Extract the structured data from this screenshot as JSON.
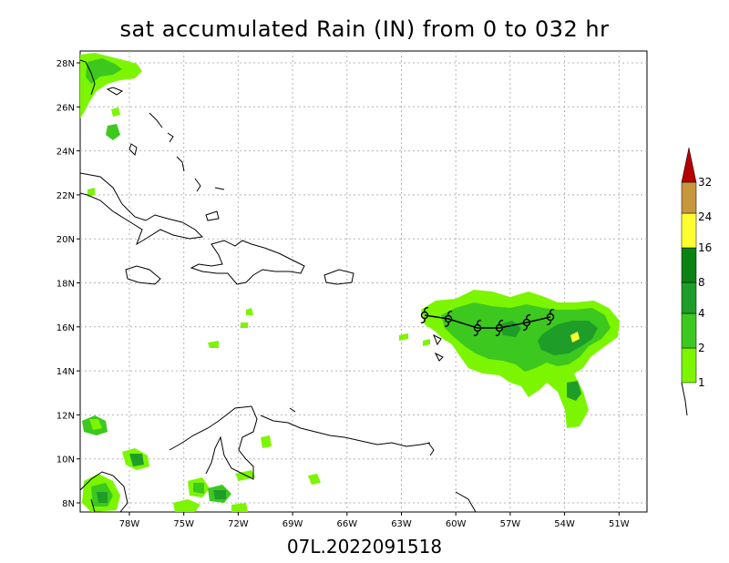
{
  "title": "sat accumulated Rain (IN) from 0 to 032 hr",
  "footer": "07L.2022091518",
  "lat_labels": [
    "28N",
    "26N",
    "24N",
    "22N",
    "20N",
    "18N",
    "16N",
    "14N",
    "12N",
    "10N",
    "8N"
  ],
  "lon_labels": [
    "78W",
    "75W",
    "72W",
    "69W",
    "66W",
    "63W",
    "60W",
    "57W",
    "54W",
    "51W"
  ],
  "colorbar": {
    "levels": [
      "1",
      "2",
      "4",
      "8",
      "16",
      "24",
      "32"
    ],
    "colors": [
      "#7cf500",
      "#3cc81e",
      "#1e9e28",
      "#0a8214",
      "#ffff32",
      "#c8963c",
      "#ee9632",
      "#b40000"
    ]
  },
  "storm_track_symbol": "hurricane-symbol"
}
